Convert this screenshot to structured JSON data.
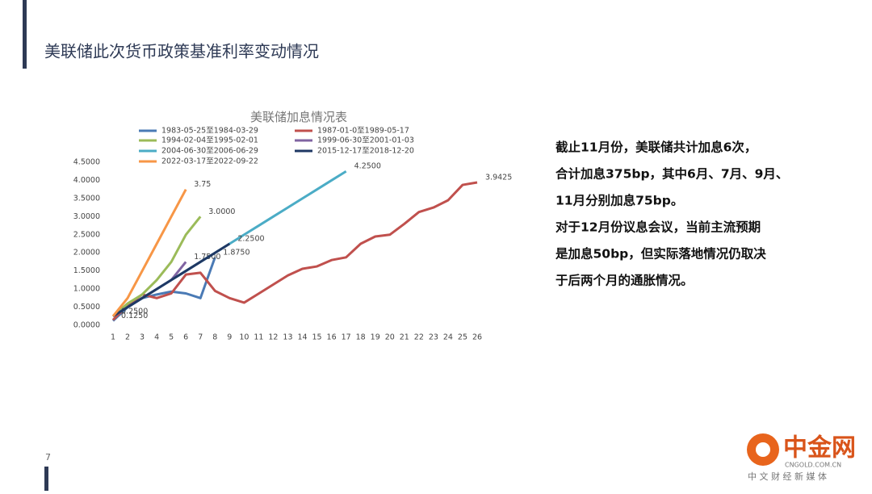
{
  "slide": {
    "title": "美联储此次货币政策基准利率变动情况",
    "page_number": "7",
    "notes": [
      "截止11月份，美联储共计加息6次，",
      "合计加息375bp，其中6月、7月、9月、",
      "11月分别加息75bp。",
      "对于12月份议息会议，当前主流预期",
      "是加息50bp，但实际落地情况仍取决",
      "于后两个月的通胀情况。"
    ],
    "logo": {
      "name": "中金网",
      "site": "CNGOLD.COM.CN",
      "slogan": "中 文 财 经 新 媒 体"
    }
  },
  "chart_data": {
    "type": "line",
    "title": "美联储加息情况表",
    "categories": [
      1,
      2,
      3,
      4,
      5,
      6,
      7,
      8,
      9,
      10,
      11,
      12,
      13,
      14,
      15,
      16,
      17,
      18,
      19,
      20,
      21,
      22,
      23,
      24,
      25,
      26
    ],
    "ylim": [
      0,
      4.5
    ],
    "yticks": [
      {
        "value": 0,
        "label": "0.0000"
      },
      {
        "value": 0.5,
        "label": "0.5000"
      },
      {
        "value": 1,
        "label": "1.0000"
      },
      {
        "value": 1.5,
        "label": "1.5000"
      },
      {
        "value": 2,
        "label": "2.0000"
      },
      {
        "value": 2.5,
        "label": "2.5000"
      },
      {
        "value": 3,
        "label": "3.0000"
      },
      {
        "value": 3.5,
        "label": "3.5000"
      },
      {
        "value": 4,
        "label": "4.0000"
      },
      {
        "value": 4.5,
        "label": "4.5000"
      }
    ],
    "grid": false,
    "series": [
      {
        "name": "1983-05-25至1984-03-29",
        "color": "#4a7ab5",
        "values": [
          0.125,
          0.5,
          0.75,
          0.85,
          0.93,
          0.88,
          0.75,
          1.875,
          null,
          null,
          null,
          null,
          null,
          null,
          null,
          null,
          null,
          null,
          null,
          null,
          null,
          null,
          null,
          null,
          null,
          null
        ],
        "value_labels": [
          "0.1250",
          null,
          null,
          null,
          null,
          null,
          null,
          "1.8750",
          null,
          null,
          null,
          null,
          null,
          null,
          null,
          null,
          null,
          null,
          null,
          null,
          null,
          null,
          null,
          null,
          null,
          null
        ]
      },
      {
        "name": "1987-01-0至1989-05-17",
        "color": "#c0504d",
        "values": [
          0.15,
          0.55,
          0.85,
          0.75,
          0.88,
          1.4,
          1.45,
          0.95,
          0.75,
          0.625,
          0.875,
          1.125,
          1.375,
          1.56,
          1.625,
          1.8,
          1.875,
          2.25,
          2.45,
          2.5,
          2.8,
          3.125,
          3.25,
          3.45,
          3.875,
          3.9425
        ],
        "value_labels": [
          null,
          null,
          null,
          null,
          null,
          null,
          null,
          null,
          null,
          null,
          null,
          null,
          null,
          null,
          null,
          null,
          null,
          null,
          null,
          null,
          null,
          null,
          null,
          null,
          null,
          "3.9425"
        ]
      },
      {
        "name": "1994-02-04至1995-02-01",
        "color": "#9bbb59",
        "values": [
          0.25,
          0.6,
          0.85,
          1.25,
          1.75,
          2.5,
          3.0,
          null,
          null,
          null,
          null,
          null,
          null,
          null,
          null,
          null,
          null,
          null,
          null,
          null,
          null,
          null,
          null,
          null,
          null,
          null
        ],
        "value_labels": [
          null,
          null,
          null,
          null,
          null,
          null,
          "3.0000",
          null,
          null,
          null,
          null,
          null,
          null,
          null,
          null,
          null,
          null,
          null,
          null,
          null,
          null,
          null,
          null,
          null,
          null,
          null
        ]
      },
      {
        "name": "1999-06-30至2001-01-03",
        "color": "#8064a2",
        "values": [
          0.25,
          0.5,
          0.75,
          1.0,
          1.25,
          1.75,
          null,
          null,
          null,
          null,
          null,
          null,
          null,
          null,
          null,
          null,
          null,
          null,
          null,
          null,
          null,
          null,
          null,
          null,
          null,
          null
        ],
        "value_labels": [
          null,
          null,
          null,
          null,
          null,
          "1.7500",
          null,
          null,
          null,
          null,
          null,
          null,
          null,
          null,
          null,
          null,
          null,
          null,
          null,
          null,
          null,
          null,
          null,
          null,
          null,
          null
        ]
      },
      {
        "name": "2004-06-30至2006-06-29",
        "color": "#4bacc6",
        "values": [
          0.25,
          0.5,
          0.75,
          1.0,
          1.25,
          1.5,
          1.75,
          2.0,
          2.25,
          2.5,
          2.75,
          3.0,
          3.25,
          3.5,
          3.75,
          4.0,
          4.25,
          null,
          null,
          null,
          null,
          null,
          null,
          null,
          null,
          null
        ],
        "value_labels": [
          "0.2500",
          null,
          null,
          null,
          null,
          null,
          null,
          null,
          null,
          null,
          null,
          null,
          null,
          null,
          null,
          null,
          "4.2500",
          null,
          null,
          null,
          null,
          null,
          null,
          null,
          null,
          null
        ]
      },
      {
        "name": "2015-12-17至2018-12-20",
        "color": "#1f3864",
        "values": [
          0.25,
          0.5,
          0.75,
          1.0,
          1.25,
          1.5,
          1.75,
          2.0,
          2.25,
          null,
          null,
          null,
          null,
          null,
          null,
          null,
          null,
          null,
          null,
          null,
          null,
          null,
          null,
          null,
          null,
          null
        ],
        "value_labels": [
          null,
          null,
          null,
          null,
          null,
          null,
          null,
          null,
          "2.2500",
          null,
          null,
          null,
          null,
          null,
          null,
          null,
          null,
          null,
          null,
          null,
          null,
          null,
          null,
          null,
          null,
          null
        ]
      },
      {
        "name": "2022-03-17至2022-09-22",
        "color": "#f79646",
        "values": [
          0.25,
          0.75,
          1.5,
          2.25,
          3.0,
          3.75,
          null,
          null,
          null,
          null,
          null,
          null,
          null,
          null,
          null,
          null,
          null,
          null,
          null,
          null,
          null,
          null,
          null,
          null,
          null,
          null
        ],
        "value_labels": [
          null,
          null,
          null,
          null,
          null,
          "3.75",
          null,
          null,
          null,
          null,
          null,
          null,
          null,
          null,
          null,
          null,
          null,
          null,
          null,
          null,
          null,
          null,
          null,
          null,
          null,
          null
        ]
      }
    ]
  }
}
